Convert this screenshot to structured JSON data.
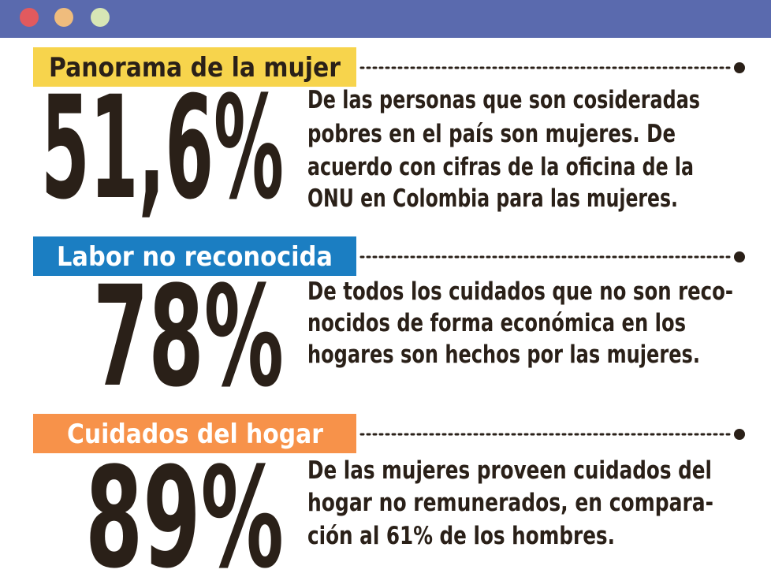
{
  "sections": [
    {
      "label": "Panorama de la mujer",
      "stat": "51,6%",
      "lines": [
        "De las personas que son cosideradas",
        "pobres en el país son mujeres. De",
        "acuerdo con cifras de la oficina de la",
        "ONU en Colombia para las mujeres."
      ]
    },
    {
      "label": "Labor no reconocida",
      "stat": "78%",
      "lines": [
        "De todos los cuidados que no son reco-",
        "nocidos de forma económica en los",
        "hogares son hechos por las mujeres."
      ]
    },
    {
      "label": "Cuidados del hogar",
      "stat": "89%",
      "lines": [
        "De las mujeres proveen cuidados del",
        "hogar no remunerados, en compara-",
        "ción al 61% de los hombres."
      ]
    }
  ]
}
